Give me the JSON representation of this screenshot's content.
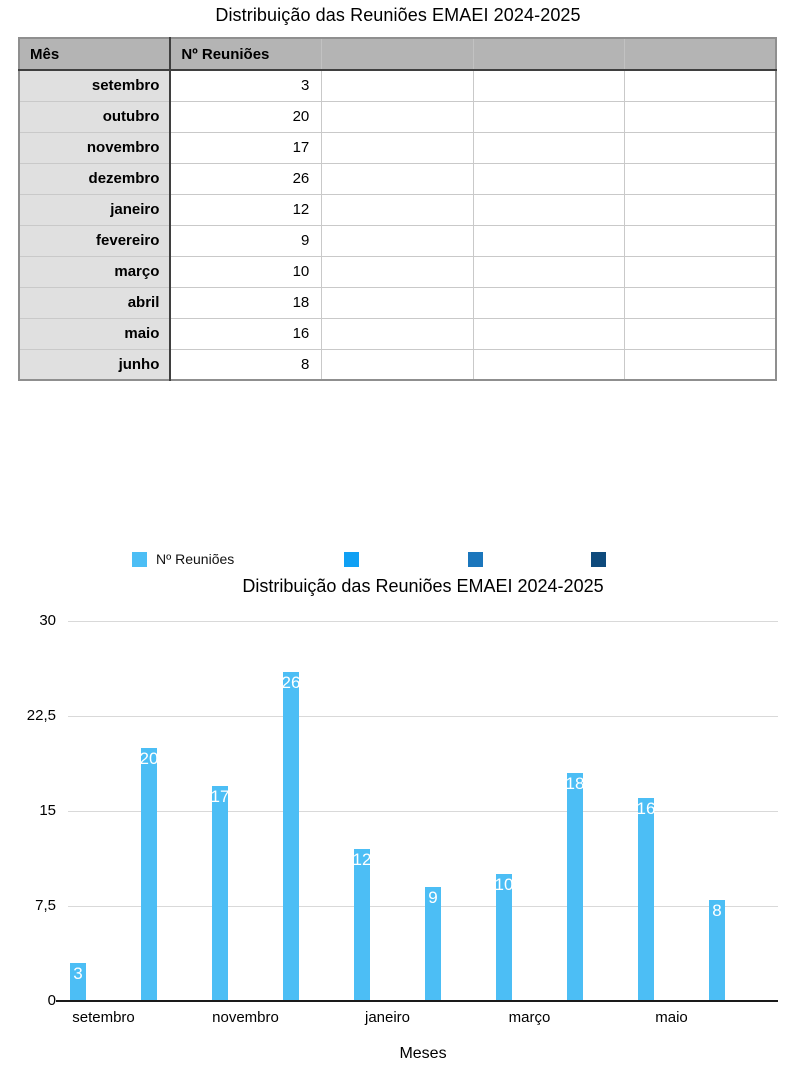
{
  "page": {
    "title": "Distribuição das Reuniões EMAEI 2024-2025",
    "background": "#ffffff"
  },
  "table": {
    "headers": [
      "Mês",
      "Nº Reuniões",
      "",
      "",
      ""
    ],
    "rows": [
      {
        "month": "setembro",
        "count": "3"
      },
      {
        "month": "outubro",
        "count": "20"
      },
      {
        "month": "novembro",
        "count": "17"
      },
      {
        "month": "dezembro",
        "count": "26"
      },
      {
        "month": "janeiro",
        "count": "12"
      },
      {
        "month": "fevereiro",
        "count": "9"
      },
      {
        "month": "março",
        "count": "10"
      },
      {
        "month": "abril",
        "count": "18"
      },
      {
        "month": "maio",
        "count": "16"
      },
      {
        "month": "junho",
        "count": "8"
      }
    ],
    "header_bg": "#b4b4b4",
    "label_column_bg": "#e0e0e0"
  },
  "chart": {
    "legend": [
      {
        "label": "Nº Reuniões",
        "color": "#4CBEF5"
      },
      {
        "label": "",
        "color": "#0FA0F4"
      },
      {
        "label": "",
        "color": "#1B76BC"
      },
      {
        "label": "",
        "color": "#0E4A7C"
      }
    ],
    "title": "Distribuição das Reuniões EMAEI 2024-2025"
  },
  "chart_data": {
    "type": "bar",
    "title": "Distribuição das Reuniões EMAEI 2024-2025",
    "categories": [
      "setembro",
      "outubro",
      "novembro",
      "dezembro",
      "janeiro",
      "fevereiro",
      "março",
      "abril",
      "maio",
      "junho"
    ],
    "series": [
      {
        "name": "Nº Reuniões",
        "values": [
          3,
          20,
          17,
          26,
          12,
          9,
          10,
          18,
          16,
          8
        ]
      }
    ],
    "x_tick_labels_shown": [
      "setembro",
      "novembro",
      "janeiro",
      "março",
      "maio"
    ],
    "y_ticks": [
      {
        "value": 0,
        "label": "0"
      },
      {
        "value": 7.5,
        "label": "7,5"
      },
      {
        "value": 15,
        "label": "15"
      },
      {
        "value": 22.5,
        "label": "22,5"
      },
      {
        "value": 30,
        "label": "30"
      }
    ],
    "ylim": [
      0,
      30
    ],
    "xlabel": "Meses",
    "ylabel": "",
    "grid": true,
    "legend_position": "top",
    "bar_color": "#4CBEF5",
    "data_label_color": "#ffffff",
    "gridline_color": "#d9d9d9",
    "axis_line_color": "#1a1a1a"
  }
}
